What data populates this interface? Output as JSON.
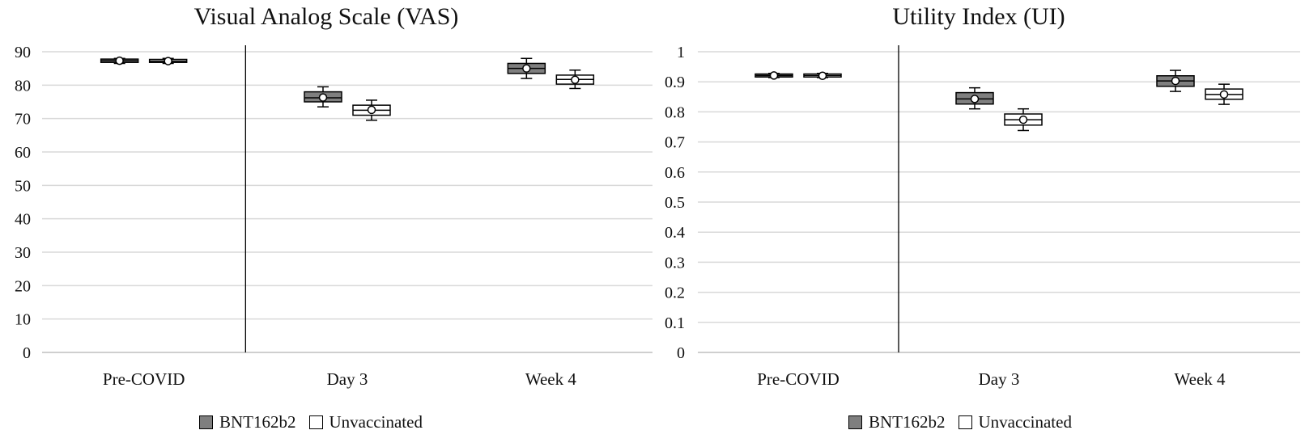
{
  "chart_data": [
    {
      "type": "box",
      "title": "Visual Analog Scale (VAS)",
      "categories": [
        "Pre-COVID",
        "Day 3",
        "Week 4"
      ],
      "ylim": [
        0,
        90
      ],
      "yticks": [
        0,
        10,
        20,
        30,
        40,
        50,
        60,
        70,
        80,
        90
      ],
      "ytick_labels": [
        "0",
        "10",
        "20",
        "30",
        "40",
        "50",
        "60",
        "70",
        "80",
        "90"
      ],
      "grid": true,
      "legend_position": "bottom",
      "series": [
        {
          "name": "BNT162b2",
          "color": "#7f7f7f",
          "boxes": [
            {
              "min": 86.5,
              "q1": 86.8,
              "median": 87.3,
              "q3": 87.8,
              "max": 88.0,
              "mean": 87.3
            },
            {
              "min": 73.5,
              "q1": 75.0,
              "median": 76.2,
              "q3": 78.0,
              "max": 79.5,
              "mean": 76.3
            },
            {
              "min": 82.0,
              "q1": 83.5,
              "median": 85.0,
              "q3": 86.5,
              "max": 88.0,
              "mean": 85.0
            }
          ]
        },
        {
          "name": "Unvaccinated",
          "color": "#ffffff",
          "boxes": [
            {
              "min": 86.5,
              "q1": 86.8,
              "median": 87.2,
              "q3": 87.7,
              "max": 88.0,
              "mean": 87.2
            },
            {
              "min": 69.5,
              "q1": 71.0,
              "median": 72.5,
              "q3": 74.0,
              "max": 75.5,
              "mean": 72.6
            },
            {
              "min": 79.0,
              "q1": 80.3,
              "median": 81.7,
              "q3": 83.0,
              "max": 84.5,
              "mean": 81.6
            }
          ]
        }
      ]
    },
    {
      "type": "box",
      "title": "Utility Index (UI)",
      "categories": [
        "Pre-COVID",
        "Day 3",
        "Week 4"
      ],
      "ylim": [
        0,
        1
      ],
      "yticks": [
        0,
        0.1,
        0.2,
        0.3,
        0.4,
        0.5,
        0.6,
        0.7,
        0.8,
        0.9,
        1
      ],
      "ytick_labels": [
        "0",
        "0.1",
        "0.2",
        "0.3",
        "0.4",
        "0.5",
        "0.6",
        "0.7",
        "0.8",
        "0.9",
        "1"
      ],
      "grid": true,
      "legend_position": "bottom",
      "series": [
        {
          "name": "BNT162b2",
          "color": "#7f7f7f",
          "boxes": [
            {
              "min": 0.914,
              "q1": 0.916,
              "median": 0.921,
              "q3": 0.926,
              "max": 0.928,
              "mean": 0.921
            },
            {
              "min": 0.81,
              "q1": 0.826,
              "median": 0.843,
              "q3": 0.864,
              "max": 0.88,
              "mean": 0.843
            },
            {
              "min": 0.868,
              "q1": 0.885,
              "median": 0.903,
              "q3": 0.92,
              "max": 0.938,
              "mean": 0.903
            }
          ]
        },
        {
          "name": "Unvaccinated",
          "color": "#ffffff",
          "boxes": [
            {
              "min": 0.914,
              "q1": 0.916,
              "median": 0.921,
              "q3": 0.926,
              "max": 0.928,
              "mean": 0.92
            },
            {
              "min": 0.738,
              "q1": 0.756,
              "median": 0.774,
              "q3": 0.793,
              "max": 0.81,
              "mean": 0.774
            },
            {
              "min": 0.825,
              "q1": 0.842,
              "median": 0.858,
              "q3": 0.876,
              "max": 0.892,
              "mean": 0.858
            }
          ]
        }
      ]
    }
  ]
}
